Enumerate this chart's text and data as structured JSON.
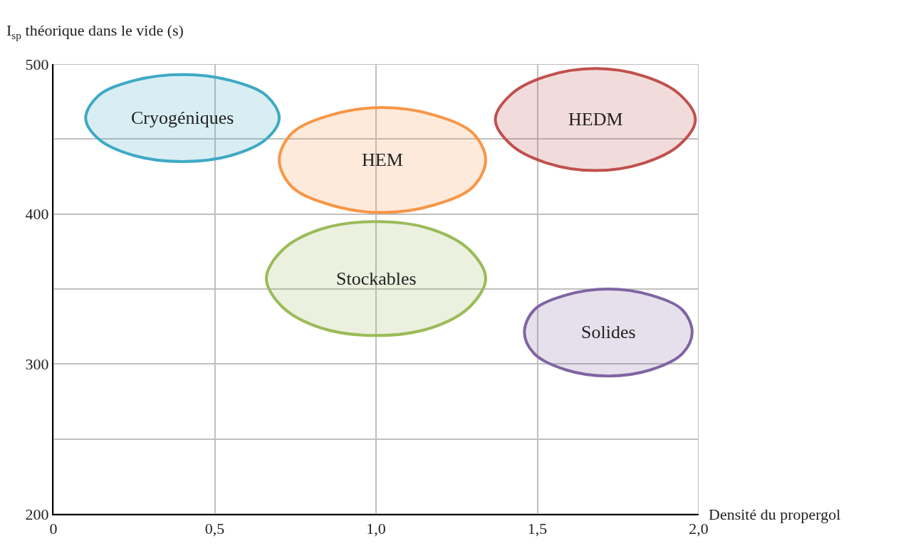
{
  "chart_data": {
    "type": "area",
    "xlabel": "Densité du propergol",
    "ylabel": "I$_{sp}$ théorique dans le vide (s)",
    "xlim": [
      0,
      2.0
    ],
    "ylim": [
      200,
      500
    ],
    "xticks": [
      0,
      {
        "value": 0.5,
        "label": "0,5"
      },
      {
        "value": 1.0,
        "label": "1,0"
      },
      {
        "value": 1.5,
        "label": "1,5"
      },
      {
        "value": 2.0,
        "label": "2,0"
      }
    ],
    "yticks": [
      200,
      {
        "value": 250,
        "label": null
      },
      300,
      {
        "value": 350,
        "label": null
      },
      400,
      {
        "value": 450,
        "label": null
      },
      500
    ],
    "grid": true,
    "legend": false,
    "series": [
      {
        "name": "Cryogéniques",
        "color": "#3fa9c5",
        "x": [
          0.7,
          0.66,
          0.55,
          0.4,
          0.25,
          0.14,
          0.1,
          0.14,
          0.25,
          0.4,
          0.55,
          0.66
        ],
        "values": [
          464,
          479,
          489,
          493,
          489,
          479,
          464,
          450,
          439,
          435,
          439,
          450
        ]
      },
      {
        "name": "HEM",
        "color": "#f79646",
        "x": [
          1.34,
          1.3,
          1.18,
          1.02,
          0.86,
          0.74,
          0.7,
          0.74,
          0.86,
          1.02,
          1.18,
          1.3
        ],
        "values": [
          436,
          454,
          466,
          471,
          466,
          454,
          436,
          418,
          406,
          401,
          406,
          418
        ]
      },
      {
        "name": "HEDM",
        "color": "#c0504d",
        "x": [
          1.99,
          1.94,
          1.83,
          1.68,
          1.53,
          1.42,
          1.37,
          1.42,
          1.53,
          1.68,
          1.83,
          1.94
        ],
        "values": [
          463,
          480,
          492,
          497,
          492,
          480,
          463,
          446,
          434,
          429,
          434,
          446
        ]
      },
      {
        "name": "Stockables",
        "color": "#9bbb59",
        "x": [
          1.34,
          1.29,
          1.17,
          1.0,
          0.83,
          0.71,
          0.66,
          0.71,
          0.83,
          1.0,
          1.17,
          1.29
        ],
        "values": [
          357,
          376,
          390,
          395,
          390,
          376,
          357,
          338,
          324,
          319,
          324,
          338
        ]
      },
      {
        "name": "Solides",
        "color": "#8064a2",
        "x": [
          1.98,
          1.95,
          1.85,
          1.72,
          1.59,
          1.49,
          1.46,
          1.49,
          1.59,
          1.72,
          1.85,
          1.95
        ],
        "values": [
          321,
          336,
          346,
          350,
          346,
          336,
          321,
          307,
          296,
          292,
          296,
          307
        ]
      }
    ]
  }
}
